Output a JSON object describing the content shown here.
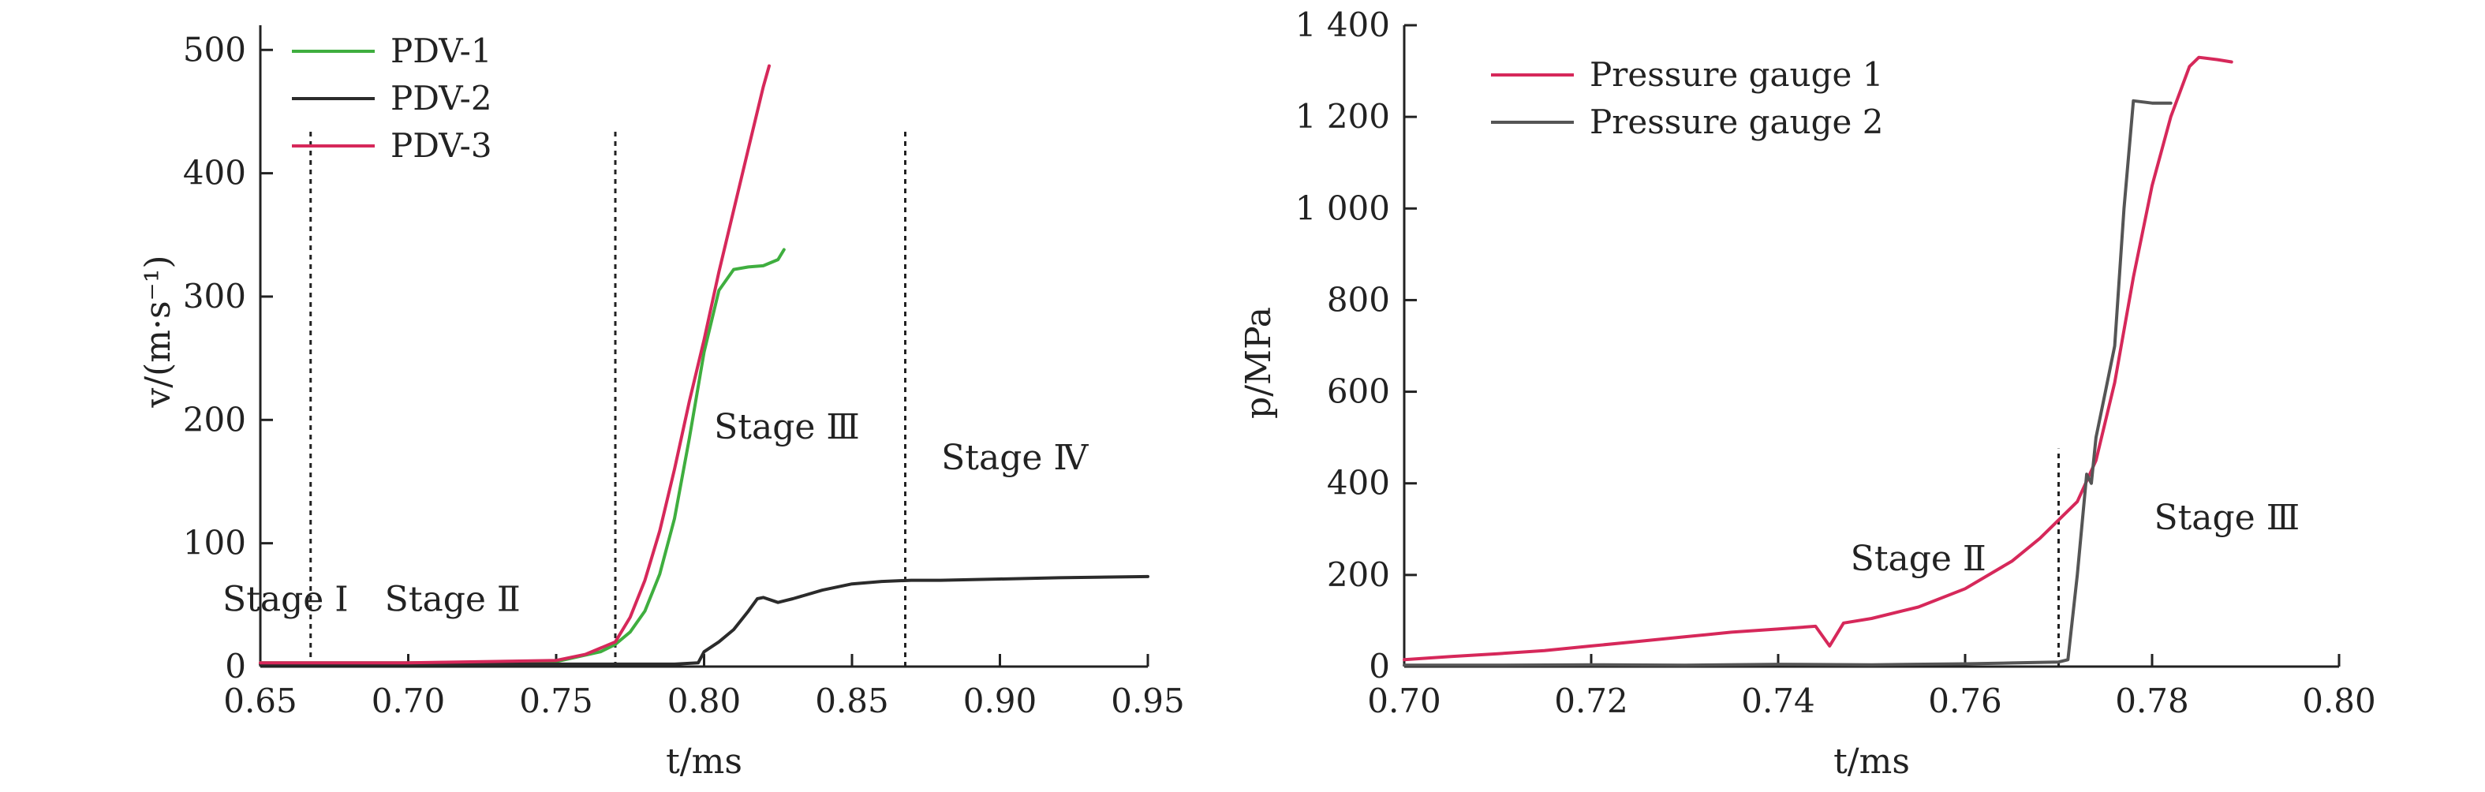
{
  "chart_data": [
    {
      "type": "line",
      "xlabel": "t/ms",
      "ylabel": "v/(m·s⁻¹)",
      "xlim": [
        0.65,
        0.95
      ],
      "ylim": [
        0,
        520
      ],
      "xticks": [
        0.65,
        0.7,
        0.75,
        0.8,
        0.85,
        0.9,
        0.95
      ],
      "xtick_labels": [
        "0.65",
        "0.70",
        "0.75",
        "0.80",
        "0.85",
        "0.90",
        "0.95"
      ],
      "yticks": [
        0,
        100,
        200,
        300,
        400,
        500
      ],
      "ytick_labels": [
        "0",
        "100",
        "200",
        "300",
        "400",
        "500"
      ],
      "legend_position": "top-left",
      "grid": false,
      "series": [
        {
          "name": "PDV-1",
          "color": "#3fae3f",
          "x": [
            0.65,
            0.7,
            0.75,
            0.765,
            0.77,
            0.775,
            0.78,
            0.785,
            0.79,
            0.795,
            0.8,
            0.805,
            0.81,
            0.815,
            0.82,
            0.825,
            0.827
          ],
          "y": [
            3,
            3,
            4,
            12,
            18,
            28,
            45,
            75,
            120,
            185,
            255,
            305,
            322,
            324,
            325,
            330,
            338
          ]
        },
        {
          "name": "PDV-2",
          "color": "#2b2b2b",
          "x": [
            0.65,
            0.7,
            0.75,
            0.79,
            0.798,
            0.8,
            0.805,
            0.81,
            0.815,
            0.818,
            0.82,
            0.825,
            0.83,
            0.84,
            0.85,
            0.86,
            0.87,
            0.88,
            0.9,
            0.92,
            0.95
          ],
          "y": [
            2,
            2,
            2,
            2,
            3,
            12,
            20,
            30,
            45,
            55,
            56,
            52,
            55,
            62,
            67,
            69,
            70,
            70,
            71,
            72,
            73
          ]
        },
        {
          "name": "PDV-3",
          "color": "#d6285a",
          "x": [
            0.65,
            0.7,
            0.75,
            0.76,
            0.77,
            0.775,
            0.78,
            0.785,
            0.79,
            0.795,
            0.8,
            0.805,
            0.81,
            0.815,
            0.82,
            0.822
          ],
          "y": [
            3,
            3,
            5,
            10,
            20,
            40,
            70,
            110,
            160,
            215,
            265,
            320,
            370,
            420,
            470,
            487
          ]
        }
      ],
      "vlines": [
        0.667,
        0.77,
        0.868
      ],
      "annotations": [
        {
          "text": "Stage Ⅰ",
          "x": 0.6585,
          "y": 45
        },
        {
          "text": "Stage Ⅱ",
          "x": 0.715,
          "y": 45
        },
        {
          "text": "Stage Ⅲ",
          "x": 0.828,
          "y": 185
        },
        {
          "text": "Stage Ⅳ",
          "x": 0.905,
          "y": 160
        }
      ]
    },
    {
      "type": "line",
      "xlabel": "t/ms",
      "ylabel": "p/MPa",
      "xlim": [
        0.7,
        0.8
      ],
      "ylim": [
        0,
        1400
      ],
      "xticks": [
        0.7,
        0.72,
        0.74,
        0.76,
        0.78,
        0.8
      ],
      "xtick_labels": [
        "0.70",
        "0.72",
        "0.74",
        "0.76",
        "0.78",
        "0.80"
      ],
      "yticks": [
        0,
        200,
        400,
        600,
        800,
        1000,
        1200,
        1400
      ],
      "ytick_labels": [
        "0",
        "200",
        "400",
        "600",
        "800",
        "1 000",
        "1 200",
        "1 400"
      ],
      "legend_position": "top-left",
      "grid": false,
      "series": [
        {
          "name": "Pressure gauge 1",
          "color": "#d6285a",
          "x": [
            0.7,
            0.705,
            0.71,
            0.715,
            0.72,
            0.725,
            0.73,
            0.735,
            0.74,
            0.744,
            0.7455,
            0.747,
            0.75,
            0.755,
            0.76,
            0.765,
            0.768,
            0.77,
            0.772,
            0.774,
            0.776,
            0.778,
            0.78,
            0.782,
            0.784,
            0.785,
            0.787,
            0.7885
          ],
          "y": [
            15,
            22,
            28,
            35,
            45,
            55,
            65,
            75,
            82,
            88,
            45,
            95,
            105,
            130,
            170,
            230,
            280,
            320,
            360,
            450,
            620,
            850,
            1050,
            1200,
            1310,
            1330,
            1325,
            1320
          ]
        },
        {
          "name": "Pressure gauge 2",
          "color": "#555555",
          "x": [
            0.7,
            0.71,
            0.72,
            0.73,
            0.74,
            0.75,
            0.76,
            0.765,
            0.77,
            0.771,
            0.772,
            0.773,
            0.7735,
            0.774,
            0.775,
            0.776,
            0.777,
            0.778,
            0.78,
            0.782
          ],
          "y": [
            3,
            3,
            4,
            3,
            5,
            4,
            6,
            8,
            10,
            15,
            200,
            420,
            400,
            500,
            600,
            700,
            1000,
            1235,
            1230,
            1230
          ]
        }
      ],
      "vlines": [
        0.77
      ],
      "annotations": [
        {
          "text": "Stage Ⅱ",
          "x": 0.755,
          "y": 210
        },
        {
          "text": "Stage Ⅲ",
          "x": 0.788,
          "y": 300
        }
      ]
    }
  ]
}
